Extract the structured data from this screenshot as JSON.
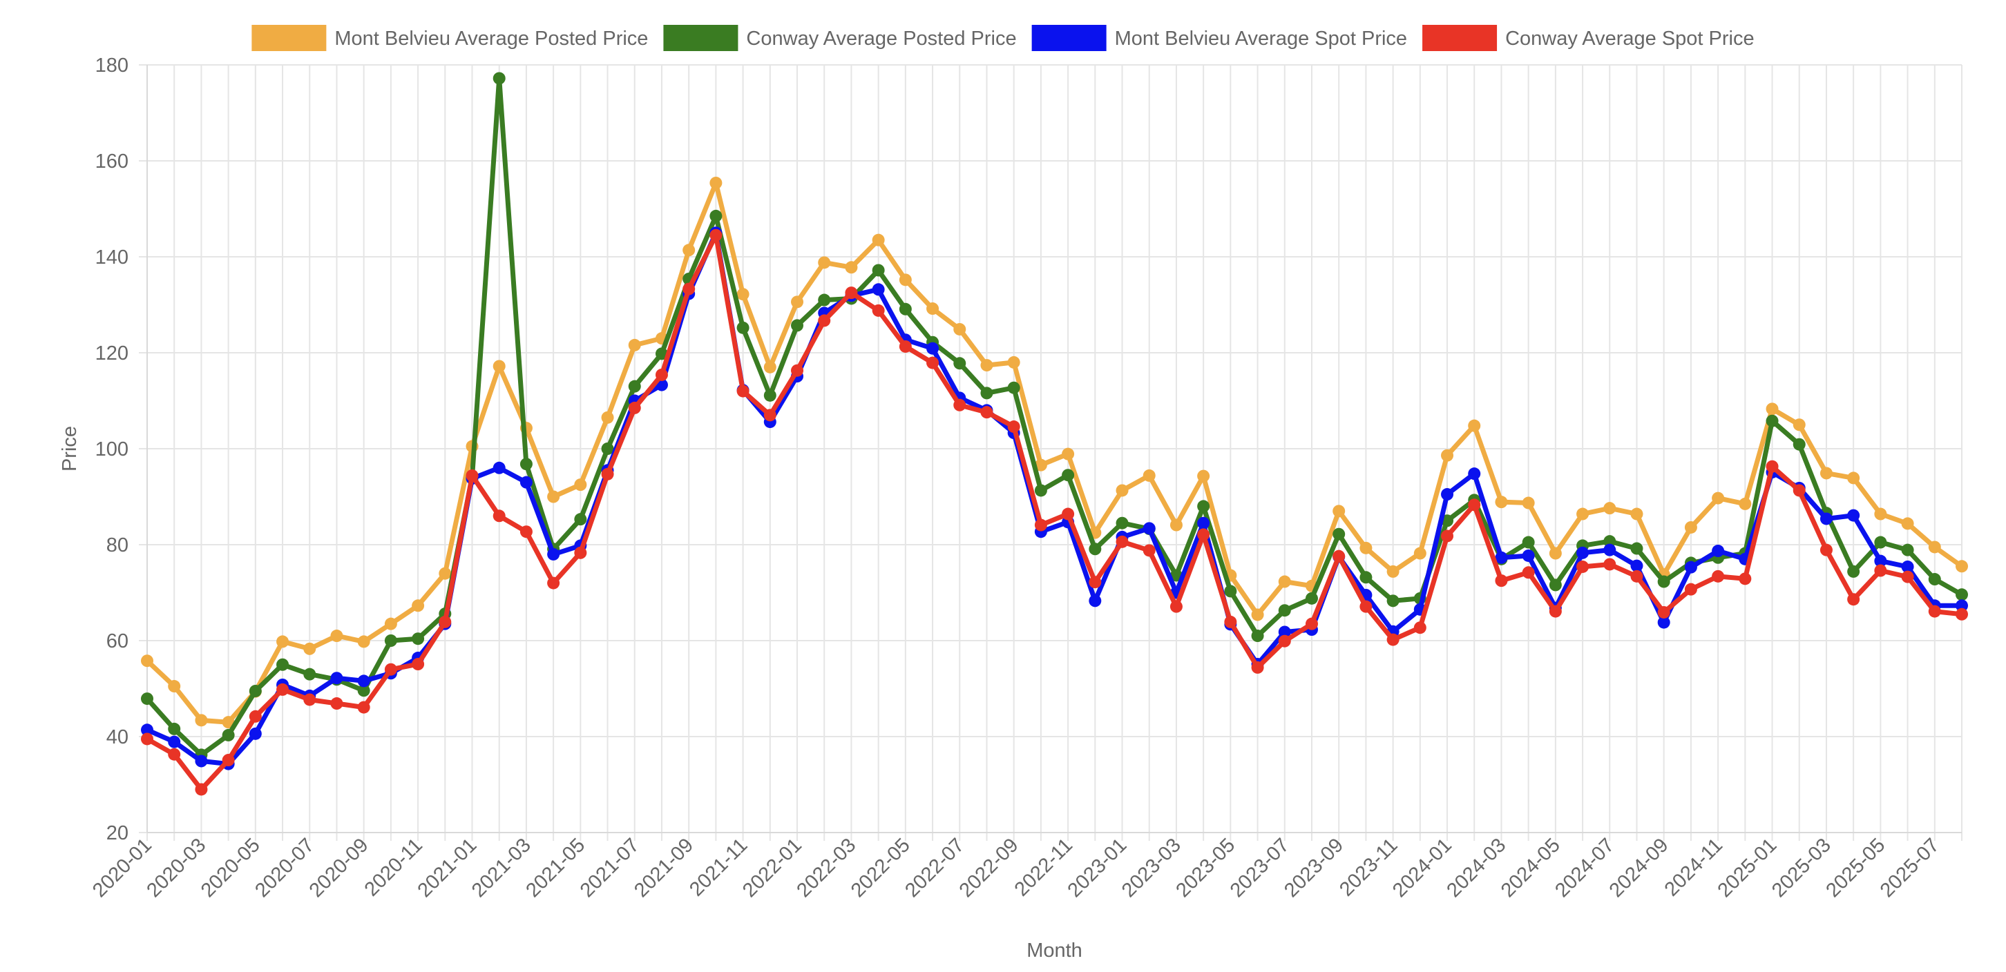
{
  "chart_data": {
    "type": "line",
    "xlabel": "Month",
    "ylabel": "Price",
    "ylim": [
      20,
      180
    ],
    "yticks": [
      20,
      40,
      60,
      80,
      100,
      120,
      140,
      160,
      180
    ],
    "grid": true,
    "legend_position": "top",
    "x": [
      "2020-01",
      "2020-02",
      "2020-03",
      "2020-04",
      "2020-05",
      "2020-06",
      "2020-07",
      "2020-08",
      "2020-09",
      "2020-10",
      "2020-11",
      "2020-12",
      "2021-01",
      "2021-02",
      "2021-03",
      "2021-04",
      "2021-05",
      "2021-06",
      "2021-07",
      "2021-08",
      "2021-09",
      "2021-10",
      "2021-11",
      "2021-12",
      "2022-01",
      "2022-02",
      "2022-03",
      "2022-04",
      "2022-05",
      "2022-06",
      "2022-07",
      "2022-08",
      "2022-09",
      "2022-10",
      "2022-11",
      "2022-12",
      "2023-01",
      "2023-02",
      "2023-03",
      "2023-04",
      "2023-05",
      "2023-06",
      "2023-07",
      "2023-08",
      "2023-09",
      "2023-10",
      "2023-11",
      "2023-12",
      "2024-01",
      "2024-02",
      "2024-03",
      "2024-04",
      "2024-05",
      "2024-06",
      "2024-07",
      "2024-08",
      "2024-09",
      "2024-10",
      "2024-11",
      "2024-12",
      "2025-01",
      "2025-02",
      "2025-03",
      "2025-04",
      "2025-05",
      "2025-06",
      "2025-07",
      "2025-08"
    ],
    "tick_labels": [
      "2020-01",
      "2020-03",
      "2020-05",
      "2020-07",
      "2020-09",
      "2020-11",
      "2021-01",
      "2021-03",
      "2021-05",
      "2021-07",
      "2021-09",
      "2021-11",
      "2022-01",
      "2022-03",
      "2022-05",
      "2022-07",
      "2022-09",
      "2022-11",
      "2023-01",
      "2023-03",
      "2023-05",
      "2023-07",
      "2023-09",
      "2023-11",
      "2024-01",
      "2024-03",
      "2024-05",
      "2024-07",
      "2024-09",
      "2024-11",
      "2025-01",
      "2025-03",
      "2025-05",
      "2025-07"
    ],
    "series": [
      {
        "name": "Mont Belvieu Average Posted Price",
        "color": "#f0ac43",
        "values": [
          55.8,
          50.5,
          43.4,
          43.0,
          49.4,
          59.8,
          58.3,
          61.0,
          59.8,
          63.5,
          67.3,
          74.0,
          100.5,
          117.2,
          104.3,
          90.0,
          92.5,
          106.5,
          121.6,
          123.0,
          141.4,
          155.4,
          132.2,
          117.0,
          130.6,
          138.8,
          137.8,
          143.5,
          135.2,
          129.2,
          124.9,
          117.4,
          118.0,
          96.6,
          98.9,
          82.5,
          91.3,
          94.4,
          84.1,
          94.3,
          73.6,
          65.4,
          72.3,
          71.4,
          87.0,
          79.3,
          74.4,
          78.2,
          98.6,
          104.8,
          88.9,
          88.7,
          78.2,
          86.4,
          87.6,
          86.4,
          73.8,
          83.6,
          89.7,
          88.5,
          108.3,
          105.0,
          94.9,
          93.9,
          86.4,
          84.4,
          79.5,
          75.5
        ]
      },
      {
        "name": "Conway Average Posted Price",
        "color": "#3a7c22",
        "values": [
          47.9,
          41.6,
          36.2,
          40.3,
          49.5,
          55.0,
          53.0,
          51.9,
          49.6,
          60.0,
          60.4,
          65.6,
          94.1,
          177.2,
          96.8,
          79.1,
          85.3,
          100.0,
          113.0,
          119.8,
          135.4,
          148.5,
          125.2,
          111.1,
          125.7,
          131.0,
          131.3,
          137.2,
          129.1,
          122.2,
          117.8,
          111.6,
          112.7,
          91.3,
          94.5,
          79.1,
          84.5,
          83.3,
          73.6,
          88.0,
          70.3,
          61.0,
          66.3,
          68.8,
          82.2,
          73.2,
          68.3,
          68.8,
          85.0,
          89.3,
          77.0,
          80.5,
          71.6,
          79.8,
          80.7,
          79.2,
          72.3,
          76.2,
          77.3,
          78.2,
          105.8,
          100.9,
          86.6,
          74.4,
          80.5,
          78.9,
          72.8,
          69.6
        ]
      },
      {
        "name": "Mont Belvieu Average Spot Price",
        "color": "#0a12ee",
        "values": [
          41.4,
          38.9,
          34.9,
          34.3,
          40.6,
          50.8,
          48.5,
          52.2,
          51.6,
          53.2,
          56.4,
          63.5,
          93.8,
          96.0,
          93.0,
          78.0,
          79.8,
          95.5,
          110.0,
          113.3,
          132.3,
          145.0,
          112.2,
          105.6,
          115.1,
          128.3,
          131.9,
          133.2,
          122.7,
          120.9,
          110.6,
          108.0,
          103.3,
          82.7,
          84.7,
          68.3,
          81.6,
          83.4,
          70.0,
          84.5,
          63.4,
          55.1,
          61.8,
          62.3,
          77.5,
          69.5,
          61.9,
          66.5,
          90.5,
          94.8,
          77.3,
          77.7,
          66.8,
          78.3,
          78.9,
          75.6,
          63.8,
          75.3,
          78.7,
          77.0,
          95.1,
          91.8,
          85.4,
          86.1,
          76.6,
          75.4,
          67.3,
          67.3
        ]
      },
      {
        "name": "Conway Average Spot Price",
        "color": "#e83426",
        "values": [
          39.5,
          36.3,
          29.0,
          35.1,
          44.2,
          49.8,
          47.7,
          46.9,
          46.1,
          54.0,
          55.1,
          63.9,
          94.4,
          86.0,
          82.7,
          72.0,
          78.3,
          94.7,
          108.5,
          115.4,
          133.3,
          144.5,
          112.0,
          107.0,
          116.3,
          126.7,
          132.5,
          128.8,
          121.3,
          117.9,
          109.1,
          107.6,
          104.6,
          84.1,
          86.4,
          72.2,
          80.6,
          78.8,
          67.1,
          82.1,
          63.9,
          54.4,
          59.9,
          63.5,
          77.6,
          67.1,
          60.2,
          62.7,
          81.8,
          88.3,
          72.5,
          74.2,
          66.1,
          75.4,
          75.9,
          73.4,
          65.9,
          70.7,
          73.4,
          72.9,
          96.3,
          91.3,
          78.9,
          68.6,
          74.6,
          73.3,
          66.1,
          65.5
        ]
      }
    ]
  }
}
